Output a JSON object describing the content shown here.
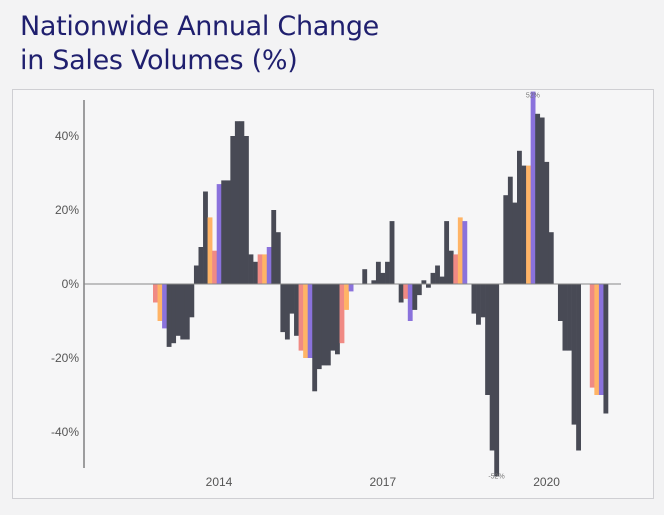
{
  "title": {
    "line1": "Nationwide Annual Change",
    "line2": "in Sales Volumes (%)"
  },
  "chart_data": {
    "type": "bar",
    "title": "Nationwide Annual Change in Sales Volumes (%)",
    "xlabel": "",
    "ylabel": "",
    "ylim": [
      -50,
      50
    ],
    "yticks": [
      40,
      20,
      0,
      -20,
      -40
    ],
    "ytick_labels": [
      "40%",
      "20%",
      "0%",
      "-20%",
      "-40%"
    ],
    "xtick_labels": [
      {
        "label": "2014",
        "index": 14.5
      },
      {
        "label": "2017",
        "index": 50.5
      },
      {
        "label": "2020",
        "index": 86.5
      }
    ],
    "colors": {
      "dark": "#484a55",
      "salmon": "#f08a84",
      "orange": "#ffb466",
      "purple": "#8a72dc"
    },
    "grid": false,
    "annotations": [
      {
        "text": "52%",
        "index": 83
      },
      {
        "text": "-52%",
        "index": 75
      }
    ],
    "series": [
      {
        "name": "Nationwide",
        "values": [
          -5,
          -10,
          -12,
          -17,
          -16,
          -14,
          -15,
          -15,
          -9,
          5,
          10,
          25,
          18,
          9,
          27,
          28,
          28,
          40,
          44,
          44,
          40,
          8,
          6,
          8,
          8,
          10,
          20,
          14,
          -13,
          -15,
          -8,
          -14,
          -18,
          -20,
          -20,
          -29,
          -23,
          -22,
          -22,
          -18,
          -19,
          -16,
          -7,
          -2,
          0,
          0,
          4,
          0,
          1,
          6,
          3,
          6,
          17,
          0,
          -5,
          -4,
          -10,
          -7,
          -3,
          1,
          -1,
          3,
          5,
          2,
          17,
          9,
          8,
          18,
          17,
          0,
          -8,
          -11,
          -9,
          -30,
          -45,
          -52,
          0,
          24,
          29,
          22,
          36,
          32,
          32,
          52,
          46,
          45,
          33,
          14,
          0,
          -10,
          -18,
          -18,
          -38,
          -45,
          0,
          0,
          -28,
          -30,
          -30,
          -35
        ]
      }
    ],
    "bar_colors": [
      "salmon",
      "orange",
      "purple",
      "dark",
      "dark",
      "dark",
      "dark",
      "dark",
      "dark",
      "dark",
      "dark",
      "dark",
      "orange",
      "salmon",
      "purple",
      "dark",
      "dark",
      "dark",
      "dark",
      "dark",
      "dark",
      "dark",
      "dark",
      "salmon",
      "orange",
      "purple",
      "dark",
      "dark",
      "dark",
      "dark",
      "dark",
      "dark",
      "salmon",
      "orange",
      "purple",
      "dark",
      "dark",
      "dark",
      "dark",
      "dark",
      "dark",
      "salmon",
      "orange",
      "purple",
      "dark",
      "dark",
      "dark",
      "dark",
      "dark",
      "dark",
      "dark",
      "dark",
      "dark",
      "dark",
      "dark",
      "salmon",
      "purple",
      "dark",
      "dark",
      "dark",
      "dark",
      "dark",
      "dark",
      "dark",
      "dark",
      "dark",
      "salmon",
      "orange",
      "purple",
      "dark",
      "dark",
      "dark",
      "dark",
      "dark",
      "dark",
      "dark",
      "dark",
      "dark",
      "dark",
      "dark",
      "dark",
      "dark",
      "orange",
      "purple",
      "dark",
      "dark",
      "dark",
      "dark",
      "dark",
      "dark",
      "dark",
      "dark",
      "dark",
      "dark",
      "dark",
      "dark",
      "salmon",
      "orange",
      "purple",
      "dark"
    ]
  }
}
